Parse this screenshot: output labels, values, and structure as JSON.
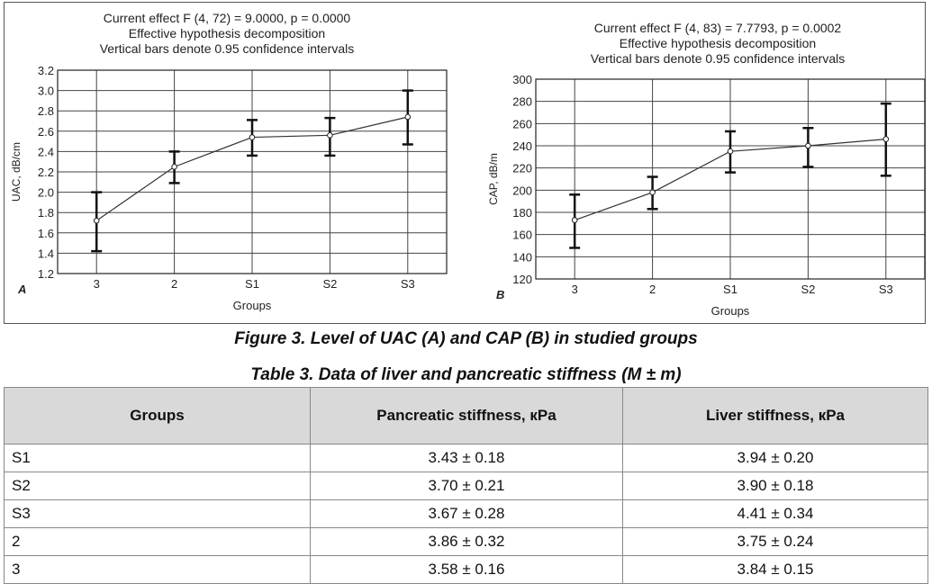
{
  "charts": [
    {
      "panel_letter": "A",
      "header": [
        "Current effect F (4, 72) = 9.0000, p = 0.0000",
        "Effective hypothesis decomposition",
        "Vertical bars denote 0.95 confidence intervals"
      ],
      "chart_data": {
        "type": "line",
        "categories": [
          "3",
          "2",
          "S1",
          "S2",
          "S3"
        ],
        "values": [
          1.72,
          2.25,
          2.54,
          2.56,
          2.74
        ],
        "ci_low": [
          1.42,
          2.09,
          2.36,
          2.36,
          2.47
        ],
        "ci_high": [
          2.0,
          2.4,
          2.71,
          2.73,
          3.0
        ],
        "xlabel": "Groups",
        "ylabel": "UAC, dB/cm",
        "ylim": [
          1.2,
          3.2
        ],
        "yticks": [
          "1.2",
          "1.4",
          "1.6",
          "1.8",
          "2.0",
          "2.2",
          "2.4",
          "2.6",
          "2.8",
          "3.0",
          "3.2"
        ],
        "grid": true
      }
    },
    {
      "panel_letter": "B",
      "header": [
        "Current effect F (4, 83) = 7.7793, p = 0.0002",
        "Effective hypothesis decomposition",
        "Vertical bars denote 0.95 confidence intervals"
      ],
      "chart_data": {
        "type": "line",
        "categories": [
          "3",
          "2",
          "S1",
          "S2",
          "S3"
        ],
        "values": [
          173,
          198,
          235,
          240,
          246
        ],
        "ci_low": [
          148,
          183,
          216,
          221,
          213
        ],
        "ci_high": [
          196,
          212,
          253,
          256,
          278
        ],
        "xlabel": "Groups",
        "ylabel": "CAP, dB/m",
        "ylim": [
          120,
          300
        ],
        "yticks": [
          "120",
          "140",
          "160",
          "180",
          "200",
          "220",
          "240",
          "260",
          "280",
          "300"
        ],
        "grid": true
      }
    }
  ],
  "figure_caption": "Figure 3. Level of UAC (A) and CAP (B) in studied groups",
  "table_caption": "Table 3. Data of liver and pancreatic stiffness (M ± m)",
  "table": {
    "headers": [
      "Groups",
      "Pancreatic stiffness, кPa",
      "Liver stiffness, кPa"
    ],
    "rows": [
      [
        "S1",
        "3.43 ± 0.18",
        "3.94 ± 0.20"
      ],
      [
        "S2",
        "3.70 ± 0.21",
        "3.90 ± 0.18"
      ],
      [
        "S3",
        "3.67 ± 0.28",
        "4.41 ± 0.34"
      ],
      [
        "2",
        "3.86 ± 0.32",
        "3.75 ± 0.24"
      ],
      [
        "3",
        "3.58 ± 0.16",
        "3.84 ± 0.15"
      ]
    ]
  }
}
